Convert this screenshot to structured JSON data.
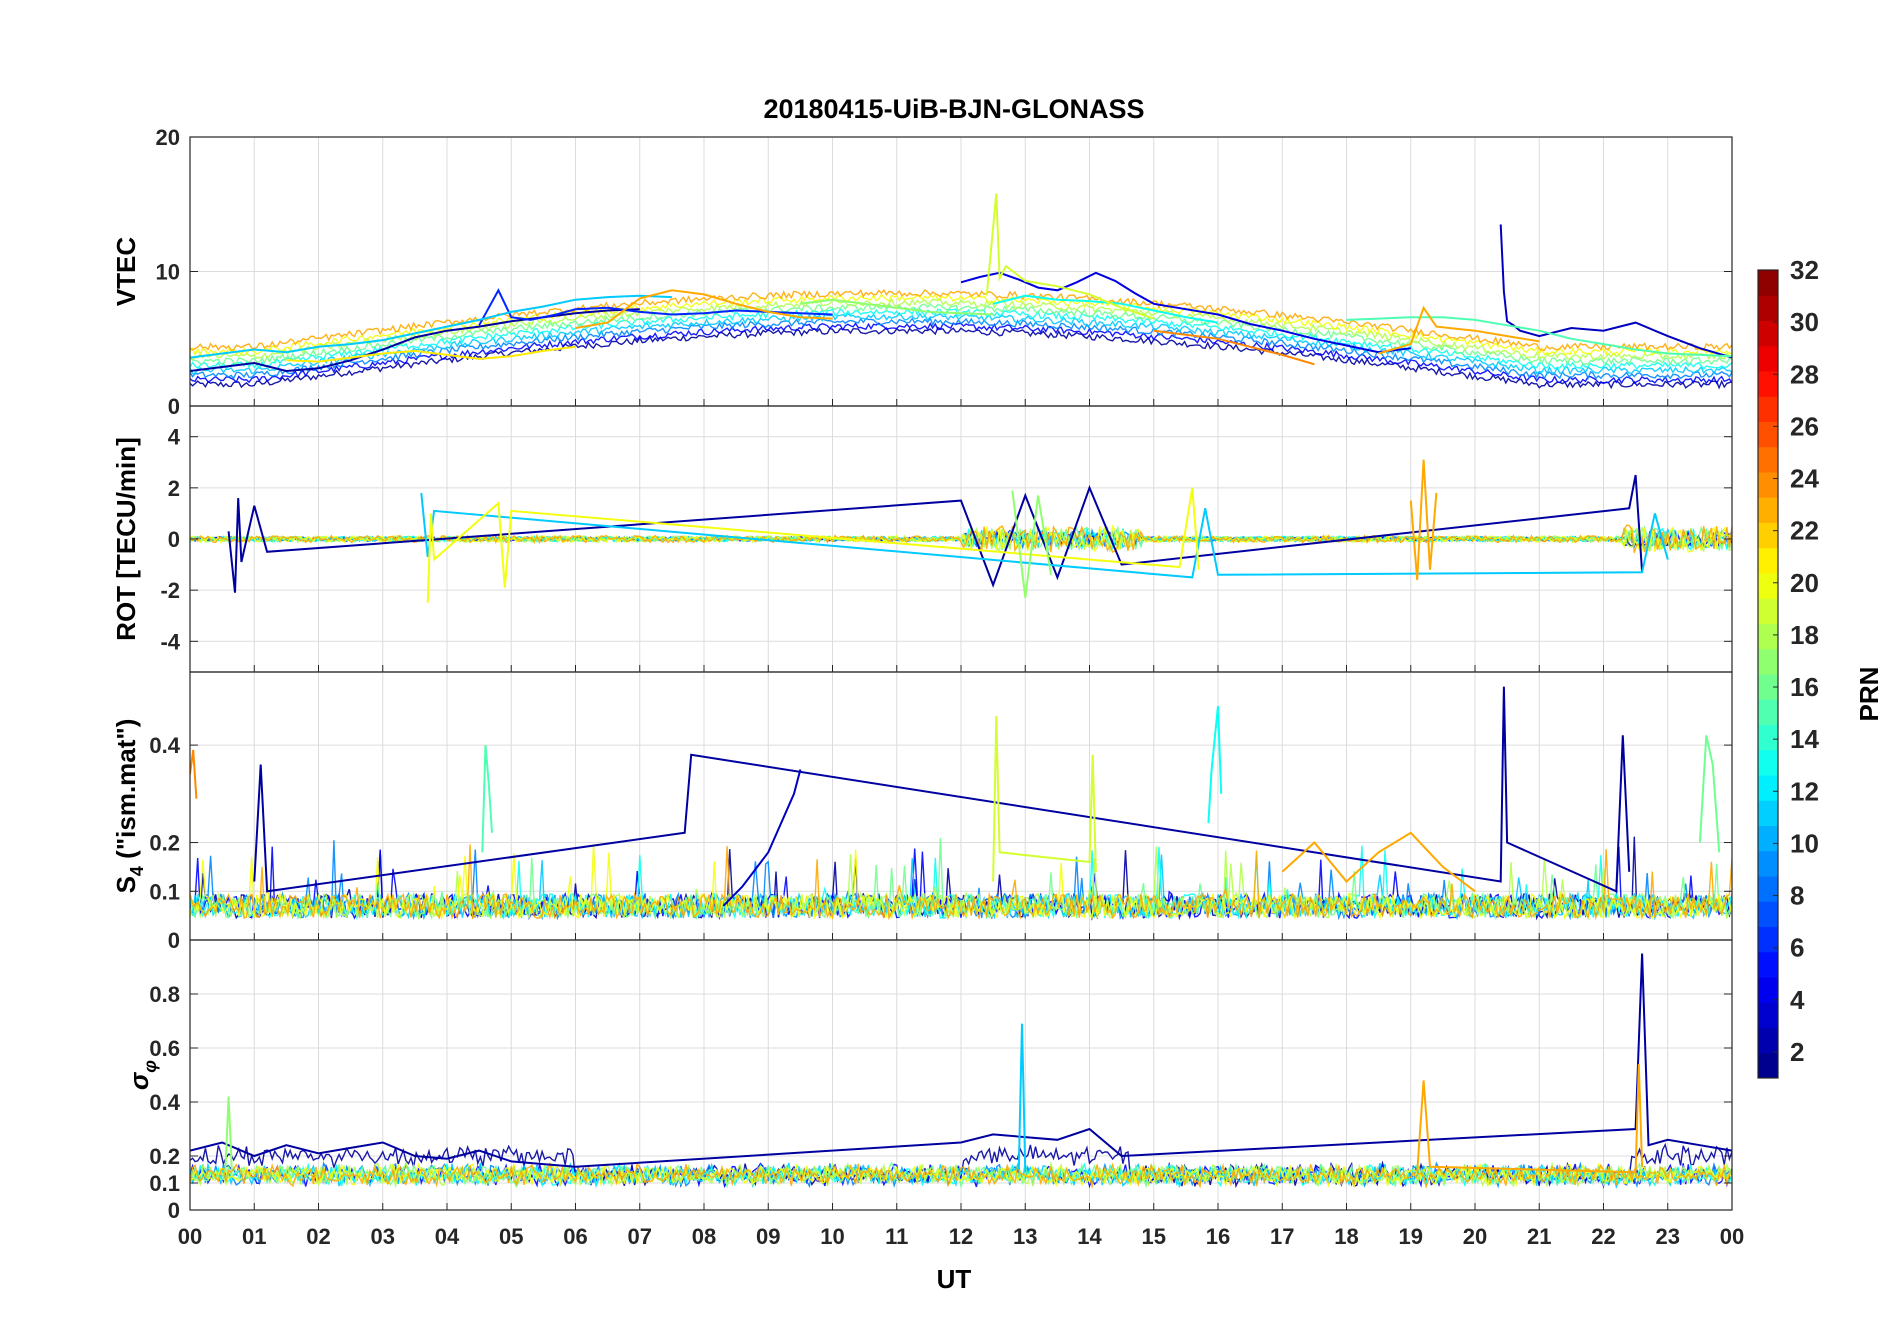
{
  "title": "20180415-UiB-BJN-GLONASS",
  "x_axis": {
    "label": "UT",
    "tick_labels": [
      "00",
      "01",
      "02",
      "03",
      "04",
      "05",
      "06",
      "07",
      "08",
      "09",
      "10",
      "11",
      "12",
      "13",
      "14",
      "15",
      "16",
      "17",
      "18",
      "19",
      "20",
      "21",
      "22",
      "23",
      "00"
    ],
    "range_hours": [
      0,
      24
    ]
  },
  "colorbar": {
    "label": "PRN",
    "range": [
      1,
      32
    ],
    "tick_labels": [
      "2",
      "4",
      "6",
      "8",
      "10",
      "12",
      "14",
      "16",
      "18",
      "20",
      "22",
      "24",
      "26",
      "28",
      "30",
      "32"
    ],
    "tick_values": [
      2,
      4,
      6,
      8,
      10,
      12,
      14,
      16,
      18,
      20,
      22,
      24,
      26,
      28,
      30,
      32
    ],
    "colormap": "jet"
  },
  "panels": [
    {
      "id": "vtec",
      "ylabel": "VTEC",
      "ylabel_sub": "",
      "ylim": [
        0,
        20
      ],
      "yticks": [
        0,
        10,
        20
      ],
      "ytick_labels": [
        "0",
        "10",
        "20"
      ]
    },
    {
      "id": "rot",
      "ylabel": "ROT [TECU/min]",
      "ylabel_sub": "",
      "ylim": [
        -5.2,
        5.2
      ],
      "yticks": [
        -4,
        -2,
        0,
        2,
        4
      ],
      "ytick_labels": [
        "-4",
        "-2",
        "0",
        "2",
        "4"
      ]
    },
    {
      "id": "s4",
      "ylabel": "S",
      "ylabel_sub": "4",
      "ylabel_rest": " (\"ism.mat\")",
      "ylim": [
        0,
        0.55
      ],
      "yticks": [
        0,
        0.1,
        0.2,
        0.4
      ],
      "ytick_labels": [
        "0",
        "0.1",
        "0.2",
        "0.4"
      ]
    },
    {
      "id": "sigphi",
      "ylabel": "σ",
      "ylabel_sub": "φ",
      "ylim": [
        0,
        1.0
      ],
      "yticks": [
        0,
        0.1,
        0.2,
        0.4,
        0.6,
        0.8
      ],
      "ytick_labels": [
        "0",
        "0.1",
        "0.2",
        "0.4",
        "0.6",
        "0.8"
      ]
    }
  ],
  "chart_data": [
    {
      "type": "line",
      "panel": "vtec",
      "xlabel": "UT",
      "ylabel": "VTEC",
      "ylim": [
        0,
        20
      ],
      "series": [
        {
          "prn": 2,
          "x": [
            0,
            0.5,
            1,
            1.5,
            2,
            2.5,
            3,
            3.5,
            4,
            4.5,
            5,
            5.5,
            6,
            6.5,
            7
          ],
          "y": [
            2.6,
            2.9,
            3.2,
            2.6,
            2.8,
            3.4,
            4.2,
            5.1,
            5.6,
            5.9,
            6.3,
            6.6,
            6.9,
            7.1,
            7.2
          ]
        },
        {
          "prn": 4,
          "x": [
            12,
            12.3,
            12.6,
            12.9,
            13.2,
            13.5,
            13.8,
            14.1,
            14.4,
            14.7,
            15,
            15.5,
            16,
            16.5,
            17,
            17.5,
            18,
            18.5,
            19
          ],
          "y": [
            9.2,
            9.6,
            9.9,
            9.4,
            8.8,
            8.6,
            9.2,
            9.9,
            9.3,
            8.4,
            7.6,
            7.2,
            6.8,
            6.1,
            5.6,
            5.0,
            4.5,
            4.0,
            4.3
          ]
        },
        {
          "prn": 3,
          "x": [
            20.4,
            20.45,
            20.5,
            20.6,
            20.7,
            21,
            21.5,
            22,
            22.5,
            23,
            23.5,
            24
          ],
          "y": [
            13.5,
            8.5,
            6.3,
            6.0,
            5.6,
            5.2,
            5.8,
            5.6,
            6.2,
            5.2,
            4.3,
            3.6
          ]
        },
        {
          "prn": 6,
          "x": [
            4.5,
            4.8,
            5,
            5.3,
            5.7,
            6,
            6.5,
            7,
            7.5,
            8,
            8.5,
            9,
            9.5,
            10
          ],
          "y": [
            6.0,
            8.6,
            6.6,
            6.4,
            6.8,
            7.2,
            7.3,
            7.0,
            6.8,
            6.9,
            7.1,
            7.0,
            6.9,
            6.8
          ]
        },
        {
          "prn": 11,
          "x": [
            0,
            0.5,
            1,
            1.5,
            2,
            2.5,
            3,
            3.5,
            4,
            4.5,
            5,
            5.5,
            6,
            6.5,
            7,
            7.5
          ],
          "y": [
            3.6,
            3.9,
            4.2,
            4.0,
            4.4,
            4.6,
            4.9,
            5.4,
            5.9,
            6.4,
            7.0,
            7.4,
            7.9,
            8.1,
            8.2,
            8.1
          ]
        },
        {
          "prn": 13,
          "x": [
            12.5,
            13,
            13.5,
            14,
            14.5,
            15,
            15.5,
            16
          ],
          "y": [
            7.6,
            8.2,
            7.9,
            7.8,
            7.6,
            7.1,
            6.6,
            6.2
          ]
        },
        {
          "prn": 15,
          "x": [
            18,
            18.5,
            19,
            19.5,
            20,
            20.5,
            21,
            21.5,
            22,
            22.5,
            23,
            23.5,
            24
          ],
          "y": [
            6.4,
            6.5,
            6.6,
            6.6,
            6.4,
            6.0,
            5.6,
            5.0,
            4.6,
            4.2,
            3.9,
            3.8,
            3.7
          ]
        },
        {
          "prn": 17,
          "x": [
            9.5,
            10,
            10.5,
            11,
            11.5,
            12,
            12.5
          ],
          "y": [
            7.6,
            7.9,
            7.6,
            7.3,
            7.0,
            6.9,
            6.8
          ]
        },
        {
          "prn": 19,
          "x": [
            12.4,
            12.55,
            12.6,
            12.7,
            13,
            13.5,
            14,
            14.5,
            15
          ],
          "y": [
            8.2,
            15.8,
            9.5,
            10.4,
            9.3,
            8.9,
            8.3,
            7.3,
            6.5
          ]
        },
        {
          "prn": 21,
          "x": [
            1.5,
            2,
            2.5,
            3,
            3.5,
            4,
            4.5,
            5,
            5.5,
            6
          ],
          "y": [
            3.4,
            3.3,
            3.6,
            3.9,
            4.1,
            3.8,
            3.5,
            3.7,
            4.1,
            4.4
          ]
        },
        {
          "prn": 23,
          "x": [
            6,
            6.5,
            7,
            7.5,
            8,
            8.5,
            9,
            9.5,
            10
          ],
          "y": [
            5.8,
            6.2,
            8.0,
            8.6,
            8.3,
            7.6,
            7.0,
            6.6,
            6.5
          ]
        },
        {
          "prn": 24,
          "x": [
            15,
            15.5,
            16,
            16.5,
            17,
            17.5
          ],
          "y": [
            5.6,
            5.3,
            5.0,
            4.4,
            3.8,
            3.1
          ]
        },
        {
          "prn": 23,
          "x": [
            18.5,
            19,
            19.2,
            19.4,
            19.6,
            20,
            20.5,
            21
          ],
          "y": [
            3.9,
            4.6,
            7.3,
            5.9,
            5.8,
            5.6,
            5.2,
            4.8
          ]
        }
      ]
    },
    {
      "type": "line",
      "panel": "rot",
      "xlabel": "UT",
      "ylabel": "ROT [TECU/min]",
      "ylim": [
        -5.2,
        5.2
      ],
      "series": [
        {
          "prn": 2,
          "x": [
            0.6,
            0.7,
            0.75,
            0.8,
            1,
            1.2,
            12,
            12.5,
            13,
            13.5,
            14,
            14.5,
            22.4,
            22.5,
            22.6
          ],
          "y": [
            0.3,
            -2.1,
            1.6,
            -0.9,
            1.3,
            -0.5,
            1.5,
            -1.8,
            1.7,
            -1.5,
            2.0,
            -1.0,
            1.2,
            2.5,
            -1.3
          ]
        },
        {
          "prn": 11,
          "x": [
            3.6,
            3.7,
            3.8,
            15.6,
            15.8,
            16,
            22.6,
            22.8,
            23
          ],
          "y": [
            1.8,
            -0.7,
            1.1,
            -1.5,
            1.2,
            -1.4,
            -1.3,
            1.0,
            -0.8
          ]
        },
        {
          "prn": 20,
          "x": [
            3.7,
            3.75,
            3.8,
            4.8,
            4.9,
            5.0,
            15.4,
            15.6,
            15.7
          ],
          "y": [
            -2.5,
            1.0,
            -0.8,
            1.4,
            -1.9,
            1.1,
            -1.1,
            2.0,
            -1.2
          ]
        },
        {
          "prn": 23,
          "x": [
            19.0,
            19.1,
            19.2,
            19.3,
            19.4
          ],
          "y": [
            1.5,
            -1.6,
            3.1,
            -1.2,
            1.8
          ]
        },
        {
          "prn": 17,
          "x": [
            12.8,
            13.0,
            13.2,
            13.4
          ],
          "y": [
            1.9,
            -2.3,
            1.7,
            -1.4
          ]
        }
      ]
    },
    {
      "type": "line",
      "panel": "s4",
      "xlabel": "UT",
      "ylabel": "S4 (\"ism.mat\")",
      "ylim": [
        0,
        0.55
      ],
      "series": [
        {
          "prn": 24,
          "x": [
            0,
            0.05,
            0.1
          ],
          "y": [
            0.34,
            0.39,
            0.29
          ]
        },
        {
          "prn": 2,
          "x": [
            1.0,
            1.1,
            1.2,
            7.7,
            7.8,
            20.4,
            20.45,
            20.5,
            22.2,
            22.3,
            22.4
          ],
          "y": [
            0.12,
            0.36,
            0.1,
            0.22,
            0.38,
            0.12,
            0.52,
            0.2,
            0.1,
            0.42,
            0.14
          ]
        },
        {
          "prn": 3,
          "x": [
            8.3,
            8.6,
            9.0,
            9.4,
            9.5
          ],
          "y": [
            0.07,
            0.11,
            0.18,
            0.3,
            0.35
          ]
        },
        {
          "prn": 15,
          "x": [
            4.55,
            4.6,
            4.65,
            4.7
          ],
          "y": [
            0.18,
            0.4,
            0.32,
            0.22
          ]
        },
        {
          "prn": 19,
          "x": [
            12.5,
            12.55,
            12.6,
            14.0,
            14.05,
            14.1
          ],
          "y": [
            0.12,
            0.46,
            0.18,
            0.16,
            0.38,
            0.14
          ]
        },
        {
          "prn": 13,
          "x": [
            15.85,
            15.9,
            16.0,
            16.05
          ],
          "y": [
            0.24,
            0.35,
            0.48,
            0.3
          ]
        },
        {
          "prn": 23,
          "x": [
            17.0,
            17.5,
            18.0,
            18.5,
            19.0,
            19.5,
            20.0
          ],
          "y": [
            0.14,
            0.2,
            0.12,
            0.18,
            0.22,
            0.15,
            0.1
          ]
        },
        {
          "prn": 16,
          "x": [
            23.5,
            23.6,
            23.7,
            23.8
          ],
          "y": [
            0.2,
            0.42,
            0.36,
            0.18
          ]
        }
      ]
    },
    {
      "type": "line",
      "panel": "sigphi",
      "xlabel": "UT",
      "ylabel": "σφ",
      "ylim": [
        0,
        1.0
      ],
      "series": [
        {
          "prn": 2,
          "x": [
            0,
            0.5,
            1,
            1.5,
            2,
            2.5,
            3,
            3.5,
            4,
            4.5,
            5,
            5.5,
            6,
            12,
            12.5,
            13,
            13.5,
            14,
            14.5,
            22.5,
            22.6,
            22.7,
            23,
            23.5,
            24
          ],
          "y": [
            0.22,
            0.25,
            0.2,
            0.24,
            0.21,
            0.23,
            0.25,
            0.2,
            0.19,
            0.22,
            0.18,
            0.17,
            0.16,
            0.25,
            0.28,
            0.27,
            0.26,
            0.3,
            0.2,
            0.3,
            0.95,
            0.24,
            0.26,
            0.24,
            0.22
          ]
        },
        {
          "prn": 11,
          "x": [
            12.9,
            12.95,
            13.0
          ],
          "y": [
            0.15,
            0.69,
            0.14
          ]
        },
        {
          "prn": 17,
          "x": [
            0.55,
            0.6,
            0.65
          ],
          "y": [
            0.14,
            0.42,
            0.15
          ]
        },
        {
          "prn": 23,
          "x": [
            19.1,
            19.2,
            19.3,
            22.5,
            22.55,
            22.6
          ],
          "y": [
            0.14,
            0.48,
            0.16,
            0.14,
            0.54,
            0.16
          ]
        }
      ]
    }
  ]
}
